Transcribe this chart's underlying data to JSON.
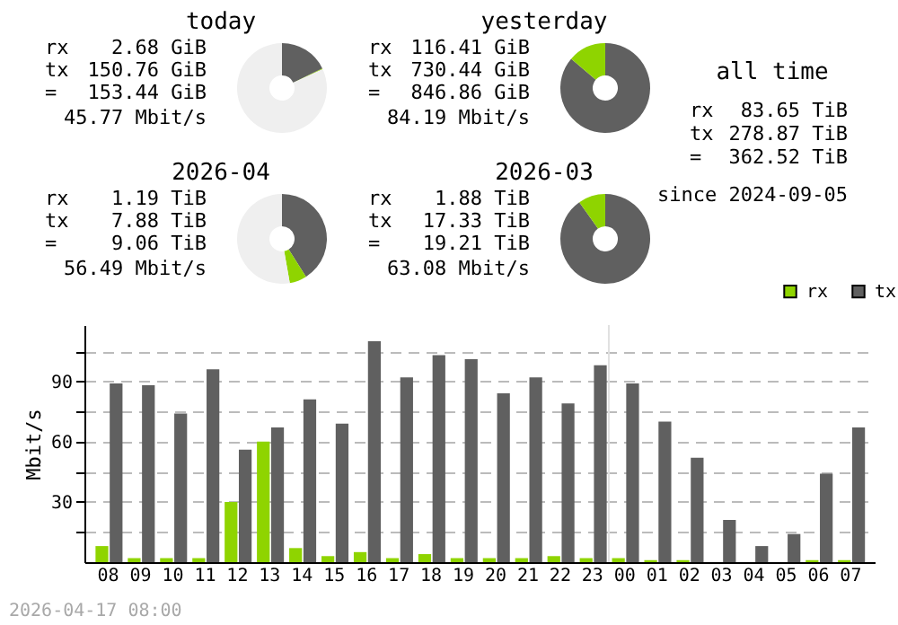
{
  "chart_data": [
    {
      "type": "donut",
      "title": "today",
      "categories": [
        null,
        null,
        null
      ],
      "values": [
        17.8,
        0.3,
        81.9
      ],
      "colors": [
        "#606060",
        "#8fd400",
        "#efefef"
      ],
      "annotations": [
        "rx",
        "2.68 GiB",
        "tx",
        "150.76 GiB",
        "=",
        "153.44 GiB",
        "45.77 Mbit/s"
      ]
    },
    {
      "type": "donut",
      "title": "yesterday",
      "categories": [
        null,
        null
      ],
      "values": [
        86.3,
        13.7
      ],
      "colors": [
        "#606060",
        "#8fd400"
      ],
      "annotations": [
        "rx",
        "116.41 GiB",
        "tx",
        "730.44 GiB",
        "=",
        "846.86 GiB",
        "84.19 Mbit/s"
      ]
    },
    {
      "type": "other",
      "title": "all time",
      "annotations": [
        "rx",
        "83.65 TiB",
        "tx",
        "278.87 TiB",
        "=",
        "362.52 TiB",
        "since 2024-09-05"
      ]
    },
    {
      "type": "donut",
      "title": "2026-04",
      "categories": [
        null,
        null,
        null
      ],
      "values": [
        41.0,
        6.2,
        52.8
      ],
      "colors": [
        "#606060",
        "#8fd400",
        "#efefef"
      ],
      "annotations": [
        "rx",
        "1.19 TiB",
        "tx",
        "7.88 TiB",
        "=",
        "9.06 TiB",
        "56.49 Mbit/s"
      ]
    },
    {
      "type": "donut",
      "title": "2026-03",
      "categories": [
        null,
        null
      ],
      "values": [
        90.2,
        9.8
      ],
      "colors": [
        "#606060",
        "#8fd400"
      ],
      "annotations": [
        "rx",
        "1.88 TiB",
        "tx",
        "17.33 TiB",
        "=",
        "19.21 TiB",
        "63.08 Mbit/s"
      ]
    },
    {
      "type": "bar",
      "ylabel": "Mbit/s",
      "categories": [
        "08",
        "09",
        "10",
        "11",
        "12",
        "13",
        "14",
        "15",
        "16",
        "17",
        "18",
        "19",
        "20",
        "21",
        "22",
        "23",
        "00",
        "01",
        "02",
        "03",
        "04",
        "05",
        "06",
        "07"
      ],
      "series": [
        {
          "name": "rx",
          "color": "#8fd400",
          "values": [
            8,
            2,
            2,
            2,
            30,
            60,
            7,
            3,
            5,
            2,
            4,
            2,
            2,
            2,
            3,
            2,
            2,
            1,
            1,
            0,
            0,
            0,
            1,
            1
          ]
        },
        {
          "name": "tx",
          "color": "#606060",
          "values": [
            89,
            88,
            74,
            96,
            56,
            67,
            81,
            69,
            110,
            92,
            103,
            101,
            84,
            92,
            79,
            98,
            89,
            70,
            52,
            21,
            8,
            14,
            44,
            67
          ]
        }
      ],
      "ylim": [
        0,
        118
      ],
      "yticks": [
        {
          "value": 15,
          "label": null
        },
        30,
        {
          "value": 45,
          "label": null
        },
        60,
        {
          "value": 75,
          "label": null
        },
        90,
        {
          "value": 105,
          "label": null
        }
      ],
      "grid": "y",
      "legend": "top right",
      "ref_lines": [
        {
          "axis": "x",
          "value": "00",
          "color": "#e0e0e0"
        }
      ],
      "annotations": [
        "2026-04-17 08:00"
      ]
    }
  ]
}
